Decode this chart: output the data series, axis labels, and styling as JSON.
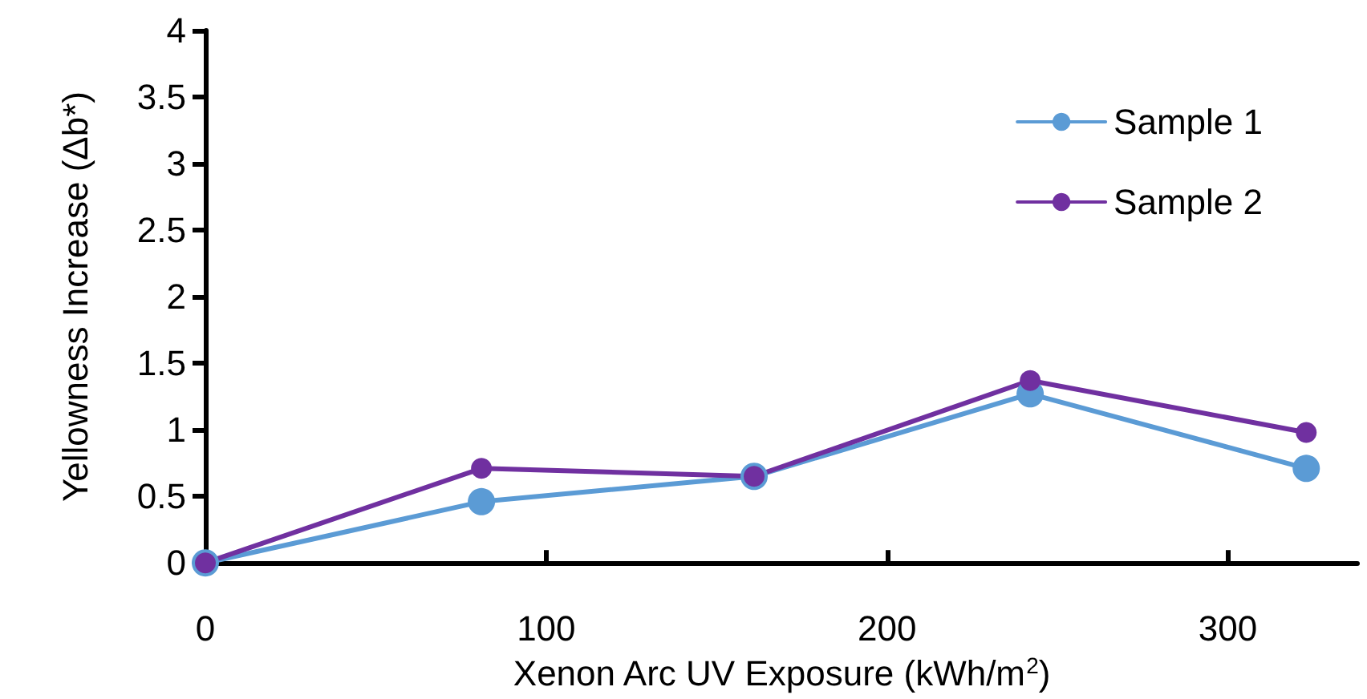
{
  "chart_data": {
    "type": "line",
    "xlabel": "Xenon Arc UV Exposure (kWh/m$^{2}$)",
    "ylabel": "Yellowness Increase (Δb*)",
    "x": [
      0,
      81,
      161,
      242,
      323
    ],
    "series": [
      {
        "name": "Sample 1",
        "color": "#5b9bd5",
        "values": [
          0,
          0.46,
          0.65,
          1.27,
          0.71
        ]
      },
      {
        "name": "Sample 2",
        "color": "#7030a0",
        "values": [
          0,
          0.71,
          0.65,
          1.37,
          0.98
        ]
      }
    ],
    "xlim": [
      0,
      338
    ],
    "xticks": [
      0,
      100,
      200,
      300
    ],
    "ylim": [
      0,
      4
    ],
    "yticks": [
      0,
      0.5,
      1,
      1.5,
      2,
      2.5,
      3,
      3.5,
      4
    ],
    "grid": false,
    "legend": "top right",
    "marker": "circle",
    "line_style": "solid"
  }
}
